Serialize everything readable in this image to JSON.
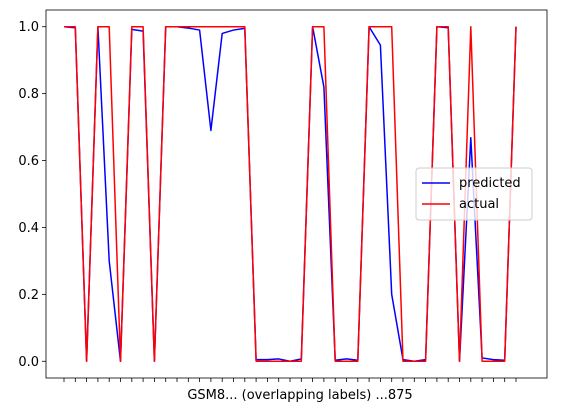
{
  "chart_data": {
    "type": "line",
    "title": "",
    "xlabel": "",
    "ylabel": "",
    "ylim": [
      -0.05,
      1.05
    ],
    "yticks": [
      "0.0",
      "0.2",
      "0.4",
      "0.6",
      "0.8",
      "1.0"
    ],
    "x_tick_text": "GSM8... (overlapping labels) ...875",
    "legend": {
      "placement": "center-right"
    },
    "series": [
      {
        "name": "predicted",
        "color": "#0000ff",
        "values": [
          1.0,
          0.997,
          0.0,
          1.0,
          0.3,
          0.0,
          0.992,
          0.987,
          0.0,
          1.0,
          1.0,
          0.996,
          0.99,
          0.69,
          0.98,
          0.99,
          0.995,
          0.005,
          0.005,
          0.007,
          0.0,
          0.007,
          1.0,
          0.82,
          0.003,
          0.007,
          0.003,
          1.0,
          0.945,
          0.2,
          0.005,
          0.0,
          0.005,
          1.0,
          0.997,
          0.0,
          0.668,
          0.01,
          0.005,
          0.003,
          1.0
        ]
      },
      {
        "name": "actual",
        "color": "#ff0000",
        "values": [
          1,
          1,
          0,
          1,
          1,
          0,
          1,
          1,
          0,
          1,
          1,
          1,
          1,
          1,
          1,
          1,
          1,
          0,
          0,
          0,
          0,
          0,
          1,
          1,
          0,
          0,
          0,
          1,
          1,
          1,
          0,
          0,
          0,
          1,
          1,
          0,
          1,
          0,
          0,
          0,
          1
        ]
      }
    ]
  }
}
